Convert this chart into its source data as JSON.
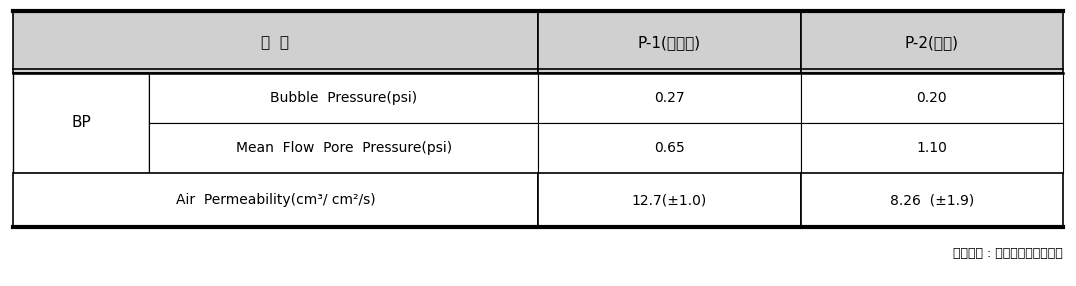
{
  "header_bg": "#d0d0d0",
  "body_bg": "#ffffff",
  "border_color": "#000000",
  "header_row": [
    "구  분",
    "P-1(바깥쪽)",
    "P-2(안쪽)"
  ],
  "col1_label": "BP",
  "rows": [
    [
      "Bubble  Pressure(psi)",
      "0.27",
      "0.20"
    ],
    [
      "Mean  Flow  Pore  Pressure(psi)",
      "0.65",
      "1.10"
    ],
    [
      "Air  Permeability(cm³/ cm²/s)",
      "12.7(±1.0)",
      "8.26  (±1.9)"
    ]
  ],
  "footnote": "측정기관 : 한국생산기술연구원",
  "col_props": [
    0.13,
    0.37,
    0.25,
    0.25
  ],
  "fig_width": 10.76,
  "fig_height": 2.86
}
